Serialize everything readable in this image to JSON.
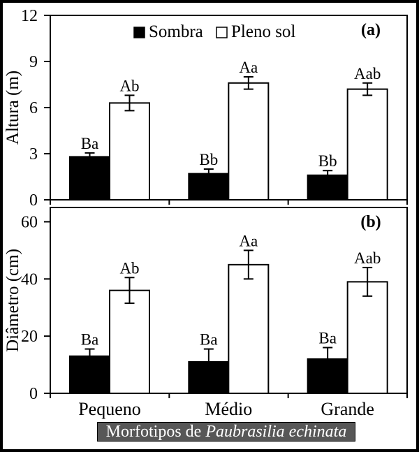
{
  "figure": {
    "background": "#ffffff",
    "frame_color": "#000000",
    "legend": {
      "position": "top-center-inside-panel-a",
      "items": [
        {
          "label": "Sombra",
          "fill": "#000000"
        },
        {
          "label": "Pleno sol",
          "fill": "#ffffff"
        }
      ]
    },
    "bottom_title": {
      "prefix": "Morfotipos de",
      "species": "Paubrasilia echinata",
      "bg_color": "#575757",
      "text_color": "#ffffff"
    }
  },
  "chart_data": [
    {
      "type": "bar",
      "panel_label": "(a)",
      "ylabel": "Altura (m)",
      "xlabel": "",
      "ylim": [
        0,
        12
      ],
      "yticks": [
        0,
        3,
        6,
        9,
        12
      ],
      "grid": false,
      "categories": [
        "Pequeno",
        "Médio",
        "Grande"
      ],
      "series": [
        {
          "name": "Sombra",
          "fill": "#000000",
          "values": [
            2.8,
            1.7,
            1.6
          ],
          "errors": [
            0.25,
            0.3,
            0.3
          ],
          "point_labels": [
            "Ba",
            "Bb",
            "Bb"
          ]
        },
        {
          "name": "Pleno sol",
          "fill": "#ffffff",
          "values": [
            6.3,
            7.6,
            7.2
          ],
          "errors": [
            0.5,
            0.4,
            0.4
          ],
          "point_labels": [
            "Ab",
            "Aa",
            "Aab"
          ]
        }
      ],
      "show_category_labels": false,
      "show_legend": true
    },
    {
      "type": "bar",
      "panel_label": "(b)",
      "ylabel": "Diâmetro (cm)",
      "xlabel": "Morfotipos de Paubrasilia echinata",
      "ylim": [
        0,
        65
      ],
      "yticks": [
        0,
        20,
        40,
        60
      ],
      "grid": false,
      "categories": [
        "Pequeno",
        "Médio",
        "Grande"
      ],
      "series": [
        {
          "name": "Sombra",
          "fill": "#000000",
          "values": [
            13,
            11,
            12
          ],
          "errors": [
            2.5,
            4.5,
            4
          ],
          "point_labels": [
            "Ba",
            "Ba",
            "Ba"
          ]
        },
        {
          "name": "Pleno sol",
          "fill": "#ffffff",
          "values": [
            36,
            45,
            39
          ],
          "errors": [
            4.5,
            5,
            5
          ],
          "point_labels": [
            "Ab",
            "Aa",
            "Aab"
          ]
        }
      ],
      "show_category_labels": true,
      "show_legend": false
    }
  ]
}
